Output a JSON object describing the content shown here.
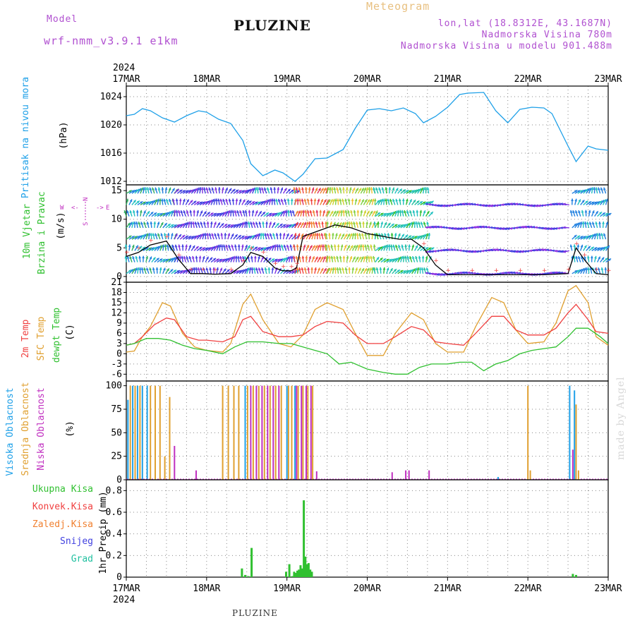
{
  "header": {
    "model_label": "Model",
    "model_name": "wrf-nmm_v3.9.1 e1km",
    "title": "PLUZINE",
    "meteogram_label": "Meteogram",
    "coords": "lon,lat (18.8312E, 43.1687N)",
    "altitude": "Nadmorska Visina 780m",
    "model_altitude": "Nadmorska Visina u modelu 901.488m",
    "watermark": "made by Angel",
    "footer": "PLUZINE"
  },
  "colors": {
    "pressure": "#1ea0e8",
    "temp2m": "#f04040",
    "sfc_temp": "#e0a030",
    "dewpt": "#30c030",
    "high_cloud": "#1ea0e8",
    "mid_cloud": "#e0a030",
    "low_cloud": "#c030c0",
    "precip": "#30c030",
    "wind_label": "#30c030",
    "dir_label": "#c030c0"
  },
  "chart_data": {
    "time_axis": {
      "top_year": "2024",
      "bottom_year": "2024",
      "ticks": [
        "17MAR",
        "18MAR",
        "19MAR",
        "20MAR",
        "21MAR",
        "22MAR",
        "23MAR"
      ],
      "start_day": 17,
      "end_day": 23,
      "grid_subdivision_hours": 6
    },
    "panels": [
      {
        "id": "pressure",
        "type": "line",
        "ylabel": [
          "Pritisak na nivou mora",
          "(hPa)"
        ],
        "ylim": [
          1011.5,
          1025.5
        ],
        "yticks": [
          1012,
          1016,
          1020,
          1024
        ],
        "series": [
          {
            "color": "#1ea0e8",
            "x": [
              17.0,
              17.1,
              17.2,
              17.3,
              17.45,
              17.6,
              17.75,
              17.9,
              18.0,
              18.15,
              18.3,
              18.45,
              18.55,
              18.7,
              18.85,
              18.95,
              19.1,
              19.2,
              19.35,
              19.5,
              19.7,
              19.85,
              20.0,
              20.15,
              20.3,
              20.45,
              20.6,
              20.7,
              20.85,
              21.0,
              21.15,
              21.25,
              21.45,
              21.6,
              21.75,
              21.9,
              22.05,
              22.2,
              22.3,
              22.5,
              22.6,
              22.75,
              22.85,
              23.0
            ],
            "y": [
              1021.3,
              1021.5,
              1022.3,
              1022.0,
              1021.0,
              1020.4,
              1021.3,
              1022.0,
              1021.8,
              1020.8,
              1020.2,
              1017.8,
              1014.5,
              1012.8,
              1013.6,
              1013.2,
              1012.0,
              1013.0,
              1015.2,
              1015.3,
              1016.5,
              1019.5,
              1022.1,
              1022.3,
              1022.0,
              1022.4,
              1021.6,
              1020.3,
              1021.2,
              1022.5,
              1024.3,
              1024.5,
              1024.6,
              1022.0,
              1020.3,
              1022.2,
              1022.5,
              1022.4,
              1021.6,
              1017.0,
              1014.8,
              1017.0,
              1016.6,
              1016.4
            ]
          }
        ]
      },
      {
        "id": "wind",
        "type": "line",
        "ylabel": [
          "10m Vjetar",
          "Brzina i Pravac",
          "(m/s)"
        ],
        "direction_legend": {
          "w": "W",
          "e": "E",
          "n": "N",
          "s": "S"
        },
        "ylim": [
          -1,
          16
        ],
        "yticks": [
          0,
          5,
          10,
          15
        ],
        "series": [
          {
            "color": "#000000",
            "x": [
              17.0,
              17.15,
              17.3,
              17.5,
              17.65,
              17.8,
              17.95,
              18.1,
              18.3,
              18.45,
              18.55,
              18.7,
              18.85,
              18.95,
              19.05,
              19.12,
              19.2,
              19.4,
              19.6,
              19.8,
              20.0,
              20.2,
              20.4,
              20.55,
              20.7,
              20.85,
              21.0,
              21.3,
              21.6,
              21.9,
              22.2,
              22.5,
              22.6,
              22.7,
              22.85,
              23.0
            ],
            "y": [
              3.5,
              4.2,
              5.5,
              6.2,
              3.0,
              0.5,
              0.5,
              0.4,
              0.5,
              2.0,
              4.2,
              3.5,
              1.5,
              1.0,
              1.0,
              1.5,
              7.0,
              8.0,
              9.0,
              8.5,
              7.5,
              7.0,
              6.5,
              6.5,
              5.0,
              2.0,
              0.3,
              0.3,
              0.3,
              0.3,
              0.3,
              0.5,
              5.0,
              3.0,
              0.5,
              0.3
            ]
          }
        ],
        "barb_rows": [
          0.5,
          2.5,
          4.5,
          6.5,
          8.5,
          10.5,
          12.5,
          14.5
        ],
        "barb_color_bands": [
          {
            "from": 17.0,
            "to": 17.6,
            "colors": [
              "#30b060",
              "#20c0c0",
              "#2080e0"
            ]
          },
          {
            "from": 17.6,
            "to": 18.5,
            "colors": [
              "#8030e0",
              "#4040e0"
            ]
          },
          {
            "from": 18.5,
            "to": 19.1,
            "colors": [
              "#8030e0",
              "#20c0c0",
              "#4040e0"
            ]
          },
          {
            "from": 19.1,
            "to": 19.5,
            "colors": [
              "#e03060",
              "#f04040",
              "#f08030"
            ]
          },
          {
            "from": 19.5,
            "to": 20.1,
            "colors": [
              "#f0c030",
              "#d0d030",
              "#80d040"
            ]
          },
          {
            "from": 20.1,
            "to": 20.8,
            "colors": [
              "#30c030",
              "#20c0a0",
              "#20c0c0"
            ]
          },
          {
            "from": 20.8,
            "to": 22.55,
            "colors": [
              "#8030e0",
              "#9030e0",
              "#4040e0"
            ]
          },
          {
            "from": 22.55,
            "to": 23.0,
            "colors": [
              "#20c0c0",
              "#2080e0"
            ]
          }
        ]
      },
      {
        "id": "temperature",
        "type": "line",
        "ylabel": [
          "2m Temp",
          "SFC Temp",
          "dewpt Temp",
          "(C)"
        ],
        "ylim": [
          -8,
          21
        ],
        "yticks": [
          -6,
          -3,
          0,
          3,
          6,
          9,
          12,
          15,
          18,
          21
        ],
        "series": [
          {
            "color": "#e0a030",
            "x": [
              17.0,
              17.1,
              17.2,
              17.3,
              17.45,
              17.55,
              17.7,
              17.85,
              18.0,
              18.2,
              18.3,
              18.45,
              18.55,
              18.7,
              18.9,
              19.05,
              19.2,
              19.35,
              19.5,
              19.7,
              19.85,
              20.0,
              20.2,
              20.35,
              20.55,
              20.7,
              20.85,
              21.0,
              21.2,
              21.35,
              21.55,
              21.7,
              21.85,
              22.0,
              22.2,
              22.35,
              22.5,
              22.6,
              22.75,
              22.85,
              23.0
            ],
            "y": [
              0.5,
              0.8,
              5.0,
              8.0,
              15.0,
              14.0,
              6.0,
              2.0,
              1.0,
              0.5,
              3.0,
              14.5,
              17.5,
              10.0,
              3.0,
              2.0,
              5.5,
              13.0,
              15.0,
              13.0,
              6.0,
              -0.5,
              -0.5,
              6.0,
              12.0,
              10.0,
              3.0,
              0.5,
              0.5,
              8.0,
              16.5,
              15.0,
              7.0,
              3.0,
              3.5,
              9.0,
              18.5,
              20.0,
              15.0,
              5.0,
              2.5
            ]
          },
          {
            "color": "#f04040",
            "x": [
              17.0,
              17.1,
              17.2,
              17.35,
              17.5,
              17.6,
              17.75,
              17.9,
              18.0,
              18.2,
              18.35,
              18.45,
              18.55,
              18.7,
              18.9,
              19.05,
              19.2,
              19.35,
              19.5,
              19.7,
              19.85,
              20.0,
              20.2,
              20.35,
              20.55,
              20.7,
              20.85,
              21.0,
              21.2,
              21.35,
              21.55,
              21.7,
              21.85,
              22.0,
              22.2,
              22.35,
              22.5,
              22.6,
              22.75,
              22.85,
              23.0
            ],
            "y": [
              2.5,
              3.0,
              5.0,
              8.5,
              10.5,
              10.0,
              5.0,
              4.0,
              4.0,
              3.5,
              5.0,
              10.0,
              11.0,
              6.5,
              5.0,
              5.0,
              5.5,
              8.0,
              9.5,
              9.0,
              5.5,
              3.0,
              3.0,
              5.0,
              8.0,
              7.0,
              3.5,
              3.0,
              2.5,
              6.0,
              11.0,
              11.0,
              7.0,
              5.5,
              5.5,
              7.5,
              12.0,
              14.5,
              10.0,
              6.5,
              6.0
            ]
          },
          {
            "color": "#30c030",
            "x": [
              17.0,
              17.1,
              17.25,
              17.4,
              17.55,
              17.7,
              17.85,
              18.0,
              18.2,
              18.35,
              18.5,
              18.7,
              18.9,
              19.05,
              19.2,
              19.35,
              19.5,
              19.65,
              19.8,
              20.0,
              20.2,
              20.35,
              20.5,
              20.65,
              20.8,
              21.0,
              21.15,
              21.3,
              21.45,
              21.6,
              21.75,
              21.9,
              22.05,
              22.2,
              22.35,
              22.5,
              22.6,
              22.75,
              22.9,
              23.0
            ],
            "y": [
              2.5,
              3.0,
              4.5,
              4.5,
              4.0,
              2.5,
              1.5,
              1.0,
              0.0,
              2.0,
              3.5,
              3.5,
              3.0,
              3.0,
              2.0,
              1.0,
              0.0,
              -3.0,
              -2.5,
              -4.5,
              -5.5,
              -6.0,
              -6.0,
              -4.0,
              -3.0,
              -3.0,
              -2.5,
              -2.5,
              -5.0,
              -3.0,
              -2.0,
              0.0,
              1.0,
              1.5,
              2.0,
              5.0,
              7.5,
              7.5,
              5.0,
              3.0
            ]
          }
        ]
      },
      {
        "id": "cloud",
        "type": "bar",
        "ylabel": [
          "Visoka Oblacnost",
          "Srednja Oblacnost",
          "Niska Oblacnost",
          "(%)"
        ],
        "ylim": [
          0,
          105
        ],
        "yticks": [
          0,
          25,
          50,
          75,
          100
        ],
        "series": [
          {
            "name": "Visoka Oblacnost",
            "color": "#1ea0e8",
            "x": [
              17.02,
              17.08,
              17.14,
              17.2,
              17.26,
              18.48,
              19.0,
              19.1,
              21.63,
              22.52,
              22.58
            ],
            "y": [
              85,
              100,
              100,
              100,
              100,
              100,
              100,
              100,
              3,
              100,
              95
            ]
          },
          {
            "name": "Srednja Oblacnost",
            "color": "#e0a030",
            "x": [
              17.05,
              17.11,
              17.17,
              17.3,
              17.36,
              17.42,
              17.48,
              17.54,
              18.2,
              18.27,
              18.34,
              18.4,
              18.51,
              18.58,
              18.65,
              18.72,
              18.79,
              18.86,
              18.93,
              19.02,
              19.06,
              19.14,
              19.2,
              19.26,
              19.32,
              22.0,
              22.03,
              22.6,
              22.63
            ],
            "y": [
              100,
              100,
              100,
              100,
              100,
              100,
              25,
              88,
              100,
              100,
              100,
              100,
              100,
              100,
              100,
              100,
              100,
              100,
              100,
              100,
              100,
              100,
              100,
              100,
              100,
              100,
              10,
              80,
              10
            ]
          },
          {
            "name": "Niska Oblacnost",
            "color": "#c030c0",
            "x": [
              17.6,
              17.87,
              18.55,
              18.62,
              18.69,
              18.76,
              18.83,
              18.9,
              19.12,
              19.18,
              19.24,
              19.3,
              19.37,
              20.31,
              20.48,
              20.52,
              20.77,
              22.56
            ],
            "y": [
              36,
              10,
              100,
              100,
              100,
              100,
              100,
              100,
              100,
              100,
              100,
              100,
              9,
              8,
              10,
              10,
              10,
              32
            ]
          }
        ]
      },
      {
        "id": "precip",
        "type": "bar",
        "ylabel": [
          "Ukupna Kisa",
          "Konvek.Kisa",
          "Zaledj.Kisa",
          "Snijeg",
          "Grad",
          "1hr Precip (mm)"
        ],
        "label_colors": [
          "#30c030",
          "#f04040",
          "#f08030",
          "#4040e0",
          "#20c0a0",
          "#000000"
        ],
        "ylim": [
          0,
          0.9
        ],
        "yticks": [
          0,
          0.2,
          0.4,
          0.6,
          0.8
        ],
        "series": [
          {
            "name": "Ukupna Kisa",
            "color": "#30c030",
            "x": [
              18.44,
              18.48,
              18.52,
              18.56,
              18.99,
              19.03,
              19.07,
              19.09,
              19.11,
              19.13,
              19.15,
              19.17,
              19.19,
              19.21,
              19.23,
              19.25,
              19.27,
              19.29,
              19.31,
              22.56,
              22.6
            ],
            "y": [
              0.08,
              0.02,
              0.01,
              0.27,
              0.05,
              0.12,
              0.01,
              0.05,
              0.04,
              0.06,
              0.07,
              0.11,
              0.08,
              0.71,
              0.19,
              0.12,
              0.13,
              0.07,
              0.05,
              0.03,
              0.02
            ]
          }
        ]
      }
    ]
  }
}
